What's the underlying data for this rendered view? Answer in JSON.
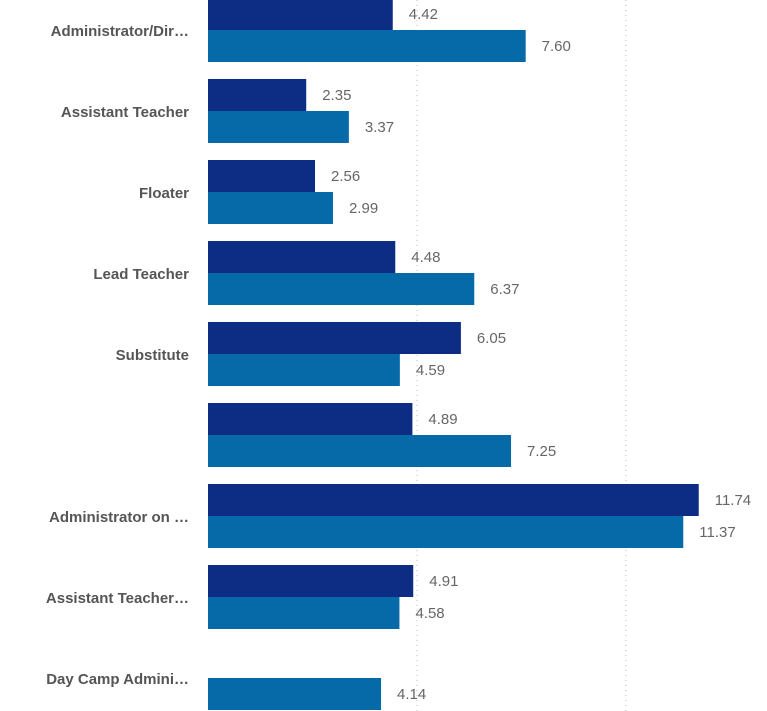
{
  "chart_data": {
    "type": "bar",
    "orientation": "horizontal",
    "grid": true,
    "xlim": [
      0,
      12
    ],
    "categories": [
      "Administrator/Dir…",
      "Assistant Teacher",
      "Floater",
      "Lead Teacher",
      "Substitute",
      "",
      "Administrator on …",
      "Assistant Teacher…",
      "Day Camp Admini…"
    ],
    "series": [
      {
        "color": "#0d2c84",
        "values": [
          4.42,
          2.35,
          2.56,
          4.48,
          6.05,
          4.89,
          11.74,
          4.91,
          null
        ]
      },
      {
        "color": "#0669a8",
        "values": [
          7.6,
          3.37,
          2.99,
          6.37,
          4.59,
          7.25,
          11.37,
          4.58,
          4.14
        ]
      }
    ],
    "value_labels": [
      [
        "4.42",
        "7.60"
      ],
      [
        "2.35",
        "3.37"
      ],
      [
        "2.56",
        "2.99"
      ],
      [
        "4.48",
        "6.37"
      ],
      [
        "6.05",
        "4.59"
      ],
      [
        "4.89",
        "7.25"
      ],
      [
        "11.74",
        "11.37"
      ],
      [
        "4.91",
        "4.58"
      ],
      [
        null,
        "4.14"
      ]
    ]
  }
}
